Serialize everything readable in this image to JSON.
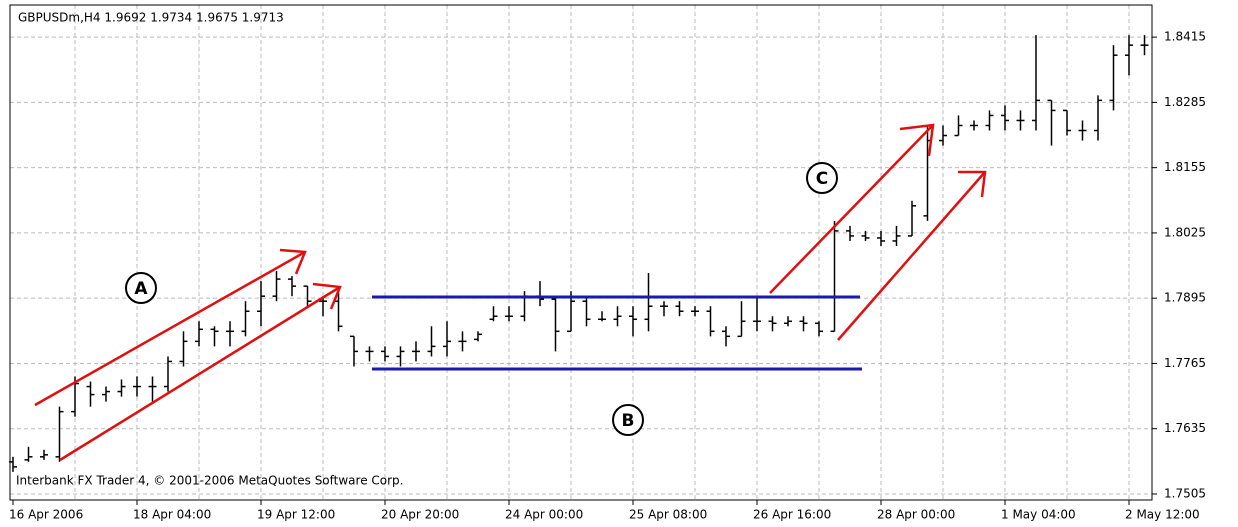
{
  "chart_data": {
    "type": "ohlc",
    "title": "GBPUSDm,H4  1.9692 1.9734 1.9675 1.9713",
    "annotations": [
      "A",
      "B",
      "C"
    ],
    "copyright": "Interbank FX Trader 4, © 2001-2006 MetaQuotes Software Corp.",
    "color": "#000000",
    "grid": true,
    "categories": [
      "16 Apr 2006",
      null,
      null,
      null,
      null,
      null,
      null,
      null,
      "18 Apr 04:00",
      null,
      null,
      null,
      null,
      null,
      null,
      null,
      "19 Apr 12:00",
      null,
      null,
      null,
      null,
      null,
      null,
      null,
      "20 Apr 20:00",
      null,
      null,
      null,
      null,
      null,
      null,
      null,
      "24 Apr 00:00",
      null,
      null,
      null,
      null,
      null,
      null,
      null,
      "25 Apr 08:00",
      null,
      null,
      null,
      null,
      null,
      null,
      null,
      "26 Apr 16:00",
      null,
      null,
      null,
      null,
      null,
      null,
      null,
      "28 Apr 00:00",
      null,
      null,
      null,
      null,
      null,
      null,
      null,
      "1 May 04:00",
      null,
      null,
      null,
      null,
      null,
      null,
      null,
      "2 May 12:00",
      null
    ],
    "open": [
      1.7569,
      1.7573,
      1.7579,
      1.7579,
      1.7669,
      1.7719,
      1.7703,
      1.7709,
      1.7719,
      1.7719,
      1.7719,
      1.7769,
      1.7809,
      1.7833,
      1.7829,
      1.7829,
      1.7869,
      1.7899,
      1.7933,
      1.7919,
      1.7889,
      1.7889,
      1.7819,
      1.7789,
      1.7789,
      1.7779,
      1.7789,
      1.7789,
      1.7799,
      1.7809,
      1.7813,
      1.7853,
      1.7859,
      1.7859,
      1.7899,
      1.7893,
      1.7829,
      1.7889,
      1.7853,
      1.7853,
      1.7859,
      1.7853,
      1.7879,
      1.7879,
      1.7869,
      1.7869,
      1.7829,
      1.7819,
      1.7849,
      1.7849,
      1.7845,
      1.7849,
      1.7845,
      1.7829,
      1.8029,
      1.8019,
      1.8015,
      1.8009,
      1.8019,
      1.8059,
      1.8209,
      1.8219,
      1.8239,
      1.8239,
      1.8259,
      1.8249,
      1.8249,
      1.8289,
      1.8269,
      1.8229,
      1.8229,
      1.8289,
      1.8379,
      1.8399
    ],
    "high": [
      1.7579,
      1.7599,
      1.7593,
      1.7679,
      1.7739,
      1.7729,
      1.7719,
      1.7733,
      1.7739,
      1.7739,
      1.7779,
      1.7829,
      1.7849,
      1.7839,
      1.7849,
      1.7889,
      1.7929,
      1.7949,
      1.7939,
      1.7919,
      1.7899,
      1.7909,
      1.7819,
      1.7799,
      1.7799,
      1.7799,
      1.7809,
      1.7839,
      1.7849,
      1.7829,
      1.7829,
      1.7879,
      1.7879,
      1.7909,
      1.7929,
      1.7899,
      1.7909,
      1.7899,
      1.7869,
      1.7879,
      1.7879,
      1.7945,
      1.7889,
      1.7889,
      1.7879,
      1.7879,
      1.7839,
      1.7889,
      1.7899,
      1.7859,
      1.7859,
      1.7859,
      1.7849,
      1.8049,
      1.8039,
      1.8029,
      1.8029,
      1.8039,
      1.8089,
      1.8239,
      1.8239,
      1.8259,
      1.8249,
      1.8269,
      1.8279,
      1.8269,
      1.8419,
      1.8289,
      1.8269,
      1.8249,
      1.8299,
      1.8399,
      1.8419,
      1.8419
    ],
    "low": [
      1.7549,
      1.7569,
      1.7573,
      1.7569,
      1.7659,
      1.7679,
      1.7689,
      1.7699,
      1.7699,
      1.7689,
      1.7709,
      1.7759,
      1.7799,
      1.7799,
      1.7799,
      1.7819,
      1.7839,
      1.7889,
      1.7899,
      1.7879,
      1.7859,
      1.7829,
      1.7759,
      1.7769,
      1.7769,
      1.7759,
      1.7769,
      1.7779,
      1.7779,
      1.7789,
      1.7809,
      1.7849,
      1.7849,
      1.7849,
      1.7879,
      1.7789,
      1.7829,
      1.7839,
      1.7849,
      1.7839,
      1.7819,
      1.7829,
      1.7859,
      1.7859,
      1.7859,
      1.7819,
      1.7799,
      1.7819,
      1.7829,
      1.7829,
      1.7839,
      1.7829,
      1.7819,
      1.7829,
      1.8009,
      1.8009,
      1.7999,
      1.7999,
      1.8019,
      1.8049,
      1.8199,
      1.8219,
      1.8229,
      1.8229,
      1.8229,
      1.8229,
      1.8229,
      1.8199,
      1.8219,
      1.8209,
      1.8209,
      1.8269,
      1.8339,
      1.8379
    ],
    "close": [
      1.7559,
      1.7579,
      1.7583,
      1.7669,
      1.7725,
      1.7703,
      1.7709,
      1.7719,
      1.7719,
      1.7719,
      1.7769,
      1.7809,
      1.7833,
      1.7829,
      1.7829,
      1.7869,
      1.7899,
      1.7933,
      1.7919,
      1.7889,
      1.7889,
      1.7839,
      1.7789,
      1.7789,
      1.7779,
      1.7789,
      1.7789,
      1.7799,
      1.7809,
      1.7809,
      1.7823,
      1.7859,
      1.7859,
      1.7899,
      1.7893,
      1.7829,
      1.7889,
      1.7853,
      1.7853,
      1.7859,
      1.7853,
      1.7879,
      1.7879,
      1.7869,
      1.7869,
      1.7829,
      1.7819,
      1.7849,
      1.7849,
      1.7845,
      1.7849,
      1.7845,
      1.7829,
      1.8029,
      1.8019,
      1.8015,
      1.8009,
      1.8019,
      1.8079,
      1.8209,
      1.8219,
      1.8239,
      1.8239,
      1.8259,
      1.8249,
      1.8249,
      1.8289,
      1.8269,
      1.8229,
      1.8229,
      1.8289,
      1.8379,
      1.8399,
      1.8399
    ],
    "ylim": [
      1.7493,
      1.8479
    ],
    "yticks": [
      1.7505,
      1.7635,
      1.7765,
      1.7895,
      1.8025,
      1.8155,
      1.8285,
      1.8415
    ]
  }
}
